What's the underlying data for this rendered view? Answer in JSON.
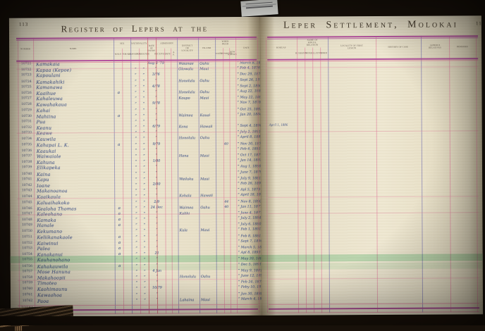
{
  "left_page": {
    "page_number": "113",
    "title": "Register of Lepers at the",
    "total_label": "Total",
    "header": {
      "number": "Number",
      "name": "Name",
      "sex": {
        "label": "Sex",
        "subs": [
          "Male",
          "Female"
        ]
      },
      "nationality": {
        "label": "Nationality",
        "subs": [
          "Hawaiian",
          "Foreigner"
        ]
      },
      "entry": "Date of Entry",
      "admission": {
        "label": "Admission",
        "subs": [
          "Received",
          "Date",
          "A. P."
        ]
      },
      "district": "District or Locality",
      "island": "Island",
      "dead": {
        "label": "When Dead",
        "subs": [
          "Date",
          "Reported",
          "How Known"
        ]
      },
      "date": "Date"
    },
    "rows": [
      {
        "n": "10721",
        "name": "Kamakaia",
        "fr": "Aug 8 ’79",
        "dist": "Waianae",
        "isl": "Oahu",
        "dt": "” March 8, 1891"
      },
      {
        "n": "10722",
        "name": "Kapaa  (Kepoe)",
        "d1": "”",
        "d2": "”",
        "fr": "”",
        "dist": "Olowalu",
        "isl": "Maui",
        "dt": "” Feb 4, 1876"
      },
      {
        "n": "10723",
        "name": "Kapoulani",
        "d1": "”",
        "d2": "”",
        "fr": "3/76",
        "dt": "” Dec 29, 1876"
      },
      {
        "n": "10724",
        "name": "Kamakahiki",
        "d1": "”",
        "d2": "”",
        "fr": "”",
        "dist": "Honolulu",
        "isl": "Oahu",
        "dt": "” Sept 26, 1877"
      },
      {
        "n": "10725",
        "name": "Kamanawa",
        "d1": "”",
        "d2": "”",
        "fr": "4/78",
        "dt": "” Sept 2, 1890"
      },
      {
        "n": "10726",
        "name": "Kaaihue",
        "s": "a",
        "d1": "”",
        "d2": "”",
        "fr": "”",
        "dist": "Honolulu",
        "isl": "Oahu",
        "dt": "” Aug 22, 1881"
      },
      {
        "n": "10727",
        "name": "Kahaleuwa",
        "d1": "”",
        "d2": "”",
        "fr": "”",
        "dist": "Kaupo",
        "isl": "Maui",
        "dt": "” May 22, 1886"
      },
      {
        "n": "10728",
        "name": "Kawahakaua",
        "d1": "”",
        "d2": "”",
        "fr": "9/78",
        "dt": "” Nov 7, 1878"
      },
      {
        "n": "10729",
        "name": "Kahai",
        "d1": "”",
        "d2": "”",
        "fr": "”",
        "dt": "” Oct 25, 1883"
      },
      {
        "n": "10730",
        "name": "Mahiina",
        "s": "a",
        "d1": "”",
        "d2": "”",
        "fr": "”",
        "dist": "Waimea",
        "isl": "Kauai",
        "dt": "” Jan 20, 1884"
      },
      {
        "n": "10731",
        "name": "Pua",
        "d1": "”",
        "d2": "”",
        "fr": "”"
      },
      {
        "n": "10732",
        "name": "Keanu",
        "d1": "”",
        "d2": "”",
        "fr": "6/79",
        "dist": "Kona",
        "isl": "Hawaii",
        "dt": "” Sept 4, 1890"
      },
      {
        "n": "10733",
        "name": "Keawe",
        "d1": "”",
        "d2": "”",
        "fr": "”",
        "dt": "” July 2, 1891"
      },
      {
        "n": "10734",
        "name": "Kauwila",
        "d1": "”",
        "d2": "”",
        "fr": "”",
        "dist": "Honolulu",
        "isl": "Oahu",
        "dt": "” April 8, 1880"
      },
      {
        "n": "10735",
        "name": "Kahapai L. K.",
        "s": "a",
        "d1": "”",
        "d2": "”",
        "fr": "9/79",
        "x": "40",
        "dt": "” Nov 30, 1879"
      },
      {
        "n": "10736",
        "name": "Kaaukai",
        "d1": "”",
        "d2": "”",
        "fr": "”",
        "dt": "” Feb 6, 1891"
      },
      {
        "n": "10737",
        "name": "Waiwaiole",
        "d1": "”",
        "d2": "”",
        "fr": "”",
        "dist": "Hana",
        "isl": "Maui",
        "dt": "” Oct 17, 1877"
      },
      {
        "n": "10738",
        "name": "Kahuna",
        "d1": "”",
        "d2": "”",
        "fr": "1/80",
        "dt": "” Jan 14, 1881"
      },
      {
        "n": "10739",
        "name": "Elikapeka",
        "d1": "”",
        "d2": "”",
        "fr": "”",
        "dt": "” Aug 1, 1890"
      },
      {
        "n": "10740",
        "name": "Kaina",
        "d1": "”",
        "d2": "”",
        "fr": "”",
        "dt": "” June 7, 1879"
      },
      {
        "n": "10741",
        "name": "Kapu",
        "d1": "”",
        "d2": "”",
        "fr": "”",
        "dist": "Wailuku",
        "isl": "Maui",
        "dt": "” July 9, 1881"
      },
      {
        "n": "10742",
        "name": "Ioane",
        "d1": "”",
        "d2": "”",
        "fr": "2/80",
        "dt": "” Feb 26, 1890"
      },
      {
        "n": "10743",
        "name": "Makanoanoa",
        "d1": "”",
        "d2": "”",
        "fr": "”",
        "dt": "” Apl 5, 1879"
      },
      {
        "n": "10744",
        "name": "Kaaikaula",
        "d1": "”",
        "d2": "”",
        "fr": "”",
        "dist": "Kohala",
        "isl": "Hawaii",
        "dt": "” April 18, 1879"
      },
      {
        "n": "10745",
        "name": "Kaluaihakoko",
        "d1": "”",
        "d2": "”",
        "fr": "2/9",
        "x": "44",
        "dt": "” Nov 8, 1890"
      },
      {
        "n": "10746",
        "name": "Kealoha Thomas",
        "s": "a",
        "d1": "”",
        "d2": "”",
        "fr": "24 Dec",
        "x": "40",
        "dist": "Waimea",
        "isl": "Oahu",
        "dt": "” Jan 11, 1877"
      },
      {
        "n": "10747",
        "name": "Kaleohano",
        "s": "a",
        "d1": "”",
        "d2": "”",
        "fr": "”",
        "dist": "Kalihi",
        "dt": "” June 4, 1877"
      },
      {
        "n": "10748",
        "name": "Kamaka",
        "s": "a",
        "d1": "”",
        "d2": "”",
        "fr": "”",
        "dt": "” July 2, 1884"
      },
      {
        "n": "10749",
        "name": "Hanale",
        "s": "a",
        "d1": "”",
        "d2": "”",
        "fr": "”",
        "dt": "” July 6, 1880"
      },
      {
        "n": "10750",
        "name": "Kekumano",
        "d1": "”",
        "d2": "”",
        "fr": "”",
        "dist": "Kula",
        "isl": "Maui",
        "dt": "” Feb 1, 1891"
      },
      {
        "n": "10751",
        "name": "Keliikanakaole",
        "s": "a",
        "d1": "”",
        "d2": "”",
        "fr": "”",
        "dt": "” Feb 8, 1881"
      },
      {
        "n": "10752",
        "name": "Kaiwinui",
        "s": "a",
        "d1": "”",
        "d2": "”",
        "fr": "”",
        "dt": "” Sept 7, 1890"
      },
      {
        "n": "10753",
        "name": "Palea",
        "s": "a",
        "d1": "”",
        "d2": "”",
        "fr": "”",
        "dt": "” March 5, 1878"
      },
      {
        "n": "10754",
        "name": "Kanakanui",
        "s": "a",
        "d1": "”",
        "d2": "”",
        "fr": "21",
        "dt": "” Apl 8, 1893"
      },
      {
        "n": "10755",
        "name": "Kauhanohano",
        "d1": "”",
        "d2": "”",
        "fr": "”",
        "dt": "” May 30, 1886"
      },
      {
        "n": "10756",
        "name": "Kahakauwila",
        "s": "a",
        "d1": "”",
        "d2": "”",
        "fr": "”",
        "dt": "” Dec 5, 1891"
      },
      {
        "n": "10757",
        "name": "Mose Hanuna",
        "d1": "”",
        "d2": "”",
        "fr": "4 Jan",
        "dt": "” May 9, 1881"
      },
      {
        "n": "10758",
        "name": "Makahoopii",
        "d1": "”",
        "d2": "”",
        "fr": "”",
        "dist": "Honolulu",
        "isl": "Oahu",
        "dt": "” June 12, 1890"
      },
      {
        "n": "10759",
        "name": "Timoteo",
        "d1": "”",
        "d2": "”",
        "fr": "”",
        "dt": "” Feb 24, 1878"
      },
      {
        "n": "10760",
        "name": "Kaohimaunu",
        "d1": "”",
        "d2": "”",
        "fr": "10/79",
        "dt": "” Feby 10, 1878"
      },
      {
        "n": "10761",
        "name": "Kawaahoa",
        "d1": "”",
        "d2": "”",
        "fr": "”",
        "dt": "” Jan 30, 1888"
      },
      {
        "n": "10762",
        "name": "Paoa",
        "d1": "”",
        "d2": "”",
        "fr": "”",
        "dist": "Lahaina",
        "isl": "Maui",
        "dt": "” March 4, 1891"
      }
    ]
  },
  "right_page": {
    "page_number": "114",
    "title": "Leper Settlement, Molokai",
    "header": {
      "kokuas": "Kokuas",
      "form": {
        "label": "Name of Kokua, Relation",
        "subs": [
          "Husband",
          "Wife",
          "Relative",
          "Hired"
        ]
      },
      "locality": "Locality of First Lesion",
      "history": "History of Case",
      "relatives": "Leprous Relatives",
      "remarks": "Remarks"
    },
    "notes": [
      {
        "row": 11,
        "text": "April 1, 1886"
      }
    ]
  },
  "accents": {
    "magenta_rule": "#b24f9c",
    "pink_rule": "#e28aa4",
    "violet_rule": "#7673b0",
    "green_highlight": "#bfe9cf",
    "paper": "#ece5cf",
    "ink": "#4d5e8e"
  }
}
